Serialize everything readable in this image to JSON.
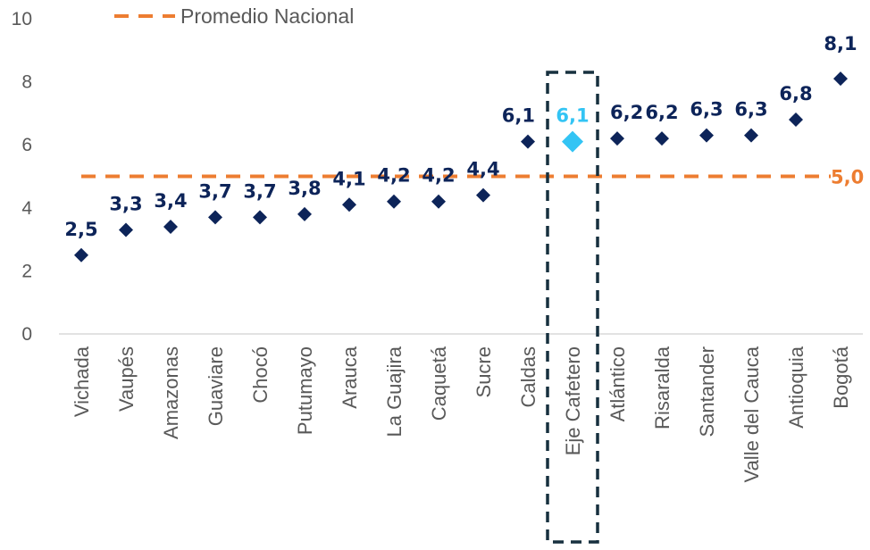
{
  "chart_data": {
    "type": "scatter",
    "categories": [
      "Vichada",
      "Vaupés",
      "Amazonas",
      "Guaviare",
      "Chocó",
      "Putumayo",
      "Arauca",
      "La Guajira",
      "Caquetá",
      "Sucre",
      "Caldas",
      "Eje Cafetero",
      "Atlántico",
      "Risaralda",
      "Santander",
      "Valle del Cauca",
      "Antioquia",
      "Bogotá"
    ],
    "values": [
      2.5,
      3.3,
      3.4,
      3.7,
      3.7,
      3.8,
      4.1,
      4.2,
      4.2,
      4.4,
      6.1,
      6.1,
      6.2,
      6.2,
      6.3,
      6.3,
      6.8,
      8.1
    ],
    "value_labels": [
      "2,5",
      "3,3",
      "3,4",
      "3,7",
      "3,7",
      "3,8",
      "4,1",
      "4,2",
      "4,2",
      "4,4",
      "6,1",
      "6,1",
      "6,2",
      "6,2",
      "6,3",
      "6,3",
      "6,8",
      "8,1"
    ],
    "highlight_category": "Eje Cafetero",
    "reference_line": {
      "name": "Promedio Nacional",
      "value": 5.0,
      "label": "5,0"
    },
    "yticks": [
      "0",
      "2",
      "4",
      "6",
      "8",
      "10"
    ],
    "ylim": [
      0,
      10
    ],
    "colors": {
      "series": "#0d2459",
      "highlight": "#33c4f4",
      "reference": "#ed7d31",
      "box": "#17303f",
      "axis": "#d9d9d9",
      "tick_text": "#595959"
    },
    "legend_position": "top-left",
    "title": "",
    "xlabel": "",
    "ylabel": ""
  }
}
